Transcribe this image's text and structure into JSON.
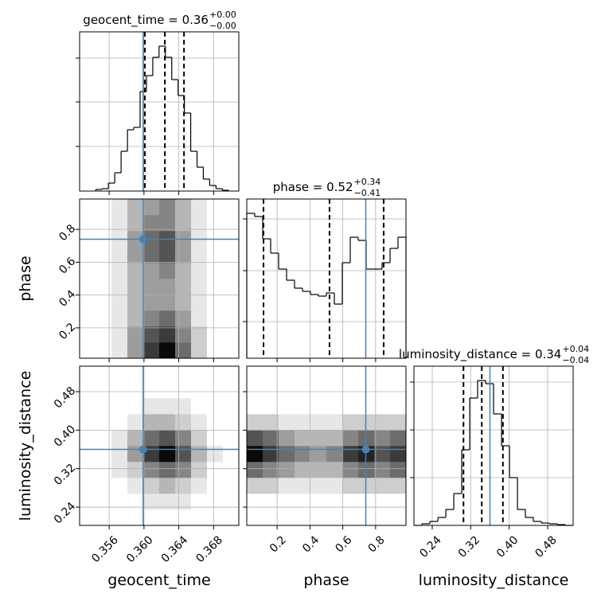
{
  "chart_data": {
    "type": "corner",
    "truth_color": "#4682b4",
    "grid": true,
    "parameters": [
      {
        "name": "geocent_time",
        "title": {
          "text": "geocent_time = 0.36",
          "plus": "+0.00",
          "minus": "−0.00"
        },
        "lim": [
          0.3526,
          0.3709
        ],
        "ticks": [
          0.356,
          {
            "value": 0.36,
            "label": "0.360"
          },
          0.364,
          0.368
        ],
        "truth": 0.3599,
        "quantiles": [
          0.3601,
          0.3624,
          0.3646
        ],
        "hist": {
          "bins": [
            0.35446,
            0.35519,
            0.35591,
            0.35664,
            0.35737,
            0.3581,
            0.35882,
            0.35955,
            0.36028,
            0.36101,
            0.36173,
            0.36246,
            0.36319,
            0.36392,
            0.36464,
            0.36537,
            0.3661,
            0.36682,
            0.36755,
            0.36828,
            0.36901,
            0.36973
          ],
          "counts": [
            2,
            3,
            10,
            23,
            50,
            77,
            80,
            125,
            145,
            168,
            182,
            168,
            140,
            120,
            98,
            50,
            30,
            15,
            7,
            3,
            1
          ],
          "ylim": [
            0,
            200
          ],
          "yticks": [
            56,
            112,
            167
          ]
        }
      },
      {
        "name": "phase",
        "title": {
          "text": "phase = 0.52",
          "plus": "+0.34",
          "minus": "−0.41"
        },
        "lim": [
          0.015,
          0.985
        ],
        "ticks": [
          0.2,
          0.4,
          0.6,
          0.8
        ],
        "truth": 0.74,
        "quantiles": [
          0.117,
          0.519,
          0.849
        ],
        "hist": {
          "bins": [
            0.015,
            0.0635,
            0.112,
            0.1605,
            0.209,
            0.2575,
            0.306,
            0.3545,
            0.403,
            0.4515,
            0.5,
            0.5485,
            0.597,
            0.6455,
            0.694,
            0.7425,
            0.791,
            0.8395,
            0.888,
            0.9365,
            0.985
          ],
          "counts": [
            182,
            178,
            150,
            132,
            112,
            98,
            88,
            84,
            80,
            78,
            82,
            68,
            120,
            152,
            148,
            112,
            112,
            120,
            138,
            152
          ],
          "ylim": [
            0,
            200
          ],
          "yticks": [
            46,
            110,
            175
          ]
        }
      },
      {
        "name": "luminosity_distance",
        "title": {
          "text": "luminosity_distance = 0.34",
          "plus": "+0.04",
          "minus": "−0.04"
        },
        "lim": [
          0.202,
          0.533
        ],
        "ticks": [
          0.24,
          0.32,
          {
            "value": 0.4,
            "label": "0.40"
          },
          0.48
        ],
        "truth": 0.36,
        "quantiles": [
          0.305,
          0.343,
          0.387
        ],
        "hist": {
          "bins": [
            0.202,
            0.2186,
            0.2351,
            0.2517,
            0.2682,
            0.2848,
            0.3013,
            0.3179,
            0.3344,
            0.351,
            0.3675,
            0.3841,
            0.4006,
            0.4172,
            0.4337,
            0.4503,
            0.4668,
            0.4834,
            0.4999,
            0.5165,
            0.533
          ],
          "counts": [
            0,
            2,
            5,
            10,
            20,
            40,
            95,
            160,
            182,
            178,
            140,
            100,
            60,
            20,
            10,
            5,
            3,
            2,
            1,
            0
          ],
          "ylim": [
            0,
            200
          ],
          "yticks": [
            60,
            120,
            180
          ]
        }
      }
    ],
    "pairs": [
      {
        "x": 0,
        "y": 1,
        "counts": [
          [
            0,
            0,
            1,
            4,
            8,
            10,
            6,
            2,
            0,
            0
          ],
          [
            0,
            0,
            1,
            4,
            7,
            8,
            5,
            2,
            0,
            0
          ],
          [
            0,
            0,
            1,
            3,
            5,
            6,
            4,
            1,
            0,
            0
          ],
          [
            0,
            0,
            1,
            3,
            4,
            4,
            3,
            1,
            0,
            0
          ],
          [
            0,
            0,
            1,
            3,
            4,
            4,
            3,
            1,
            0,
            0
          ],
          [
            0,
            0,
            1,
            3,
            4,
            5,
            3,
            1,
            0,
            0
          ],
          [
            0,
            0,
            1,
            4,
            6,
            7,
            4,
            1,
            0,
            0
          ],
          [
            0,
            0,
            1,
            4,
            6,
            7,
            4,
            1,
            0,
            0
          ],
          [
            0,
            0,
            1,
            3,
            5,
            5,
            3,
            1,
            0,
            0
          ],
          [
            0,
            0,
            1,
            3,
            4,
            5,
            3,
            1,
            0,
            0
          ]
        ]
      },
      {
        "x": 0,
        "y": 2,
        "counts": [
          [
            0,
            0,
            0,
            0,
            0,
            0,
            0,
            0,
            0,
            0
          ],
          [
            0,
            0,
            0,
            0,
            1,
            1,
            1,
            0,
            0,
            0
          ],
          [
            0,
            0,
            0,
            1,
            2,
            3,
            2,
            1,
            0,
            0
          ],
          [
            0,
            0,
            1,
            2,
            5,
            6,
            5,
            2,
            0,
            0
          ],
          [
            0,
            0,
            1,
            4,
            8,
            10,
            7,
            3,
            1,
            0
          ],
          [
            0,
            0,
            1,
            3,
            6,
            7,
            5,
            2,
            0,
            0
          ],
          [
            0,
            0,
            0,
            1,
            3,
            3,
            2,
            1,
            0,
            0
          ],
          [
            0,
            0,
            0,
            0,
            1,
            1,
            1,
            0,
            0,
            0
          ],
          [
            0,
            0,
            0,
            0,
            0,
            0,
            0,
            0,
            0,
            0
          ],
          [
            0,
            0,
            0,
            0,
            0,
            0,
            0,
            0,
            0,
            0
          ]
        ]
      },
      {
        "x": 1,
        "y": 2,
        "counts": [
          [
            0,
            0,
            0,
            0,
            0,
            0,
            0,
            0,
            0,
            0
          ],
          [
            0,
            0,
            0,
            0,
            0,
            0,
            0,
            0,
            0,
            0
          ],
          [
            2,
            2,
            1,
            1,
            1,
            1,
            2,
            2,
            2,
            2
          ],
          [
            6,
            5,
            4,
            3,
            3,
            3,
            5,
            6,
            5,
            6
          ],
          [
            10,
            8,
            6,
            5,
            4,
            5,
            8,
            9,
            7,
            8
          ],
          [
            7,
            6,
            4,
            3,
            3,
            3,
            5,
            6,
            5,
            6
          ],
          [
            2,
            2,
            1,
            1,
            1,
            1,
            2,
            2,
            2,
            2
          ],
          [
            0,
            0,
            0,
            0,
            0,
            0,
            0,
            0,
            0,
            0
          ],
          [
            0,
            0,
            0,
            0,
            0,
            0,
            0,
            0,
            0,
            0
          ],
          [
            0,
            0,
            0,
            0,
            0,
            0,
            0,
            0,
            0,
            0
          ]
        ]
      }
    ]
  }
}
